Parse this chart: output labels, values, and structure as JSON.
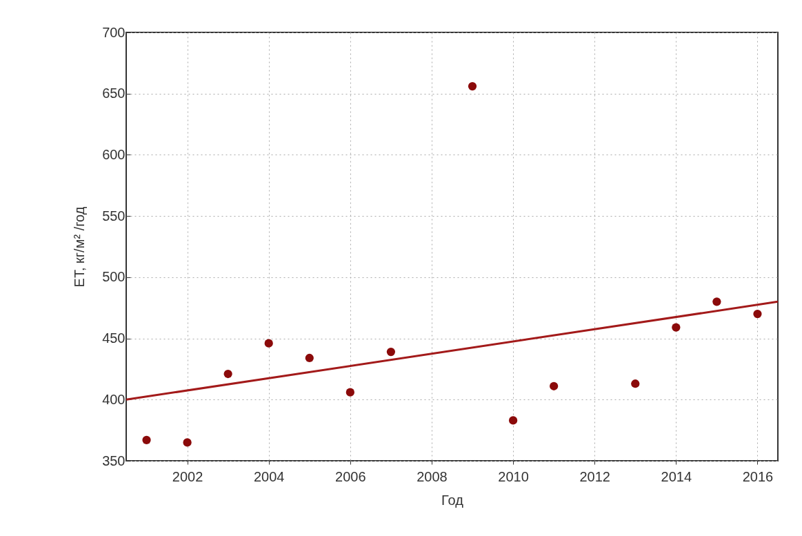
{
  "chart_data": {
    "type": "scatter",
    "xlabel": "Год",
    "ylabel": "ET, кг/м² /год",
    "xlim": [
      2000.5,
      2016.5
    ],
    "xticks": [
      2002,
      2004,
      2006,
      2008,
      2010,
      2012,
      2014,
      2016
    ],
    "ylim": [
      350,
      700
    ],
    "yticks": [
      350,
      400,
      450,
      500,
      550,
      600,
      650,
      700
    ],
    "grid": true,
    "marker": "circle",
    "series": [
      {
        "color": "#8b0a0a",
        "x": [
          2001,
          2002,
          2003,
          2004,
          2005,
          2006,
          2007,
          2009,
          2010,
          2011,
          2013,
          2014,
          2015,
          2016
        ],
        "values": [
          367,
          365,
          421,
          446,
          434,
          406,
          439,
          656,
          383,
          411,
          413,
          459,
          480,
          470
        ]
      },
      {
        "type": "line",
        "color": "#a31a1a",
        "line_style": "solid",
        "marker": "none",
        "x": [
          2000.5,
          2016.5
        ],
        "values": [
          400,
          480
        ]
      }
    ]
  }
}
